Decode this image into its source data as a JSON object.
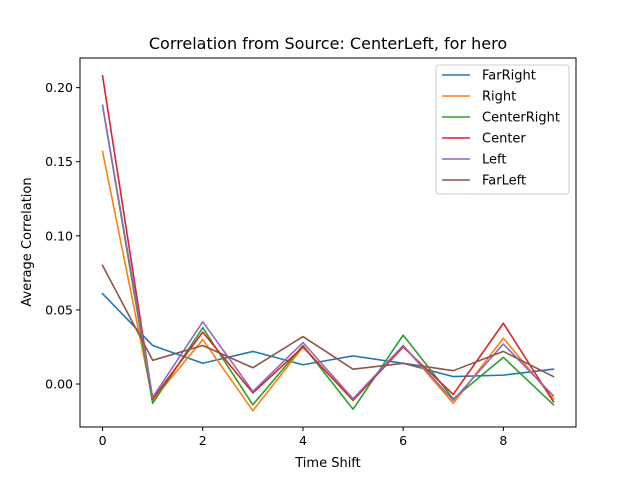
{
  "chart_data": {
    "type": "line",
    "title": "Correlation from Source: CenterLeft, for hero",
    "xlabel": "Time Shift",
    "ylabel": "Average Correlation",
    "x": [
      0,
      1,
      2,
      3,
      4,
      5,
      6,
      7,
      8,
      9
    ],
    "xlim": [
      -0.45,
      9.45
    ],
    "ylim": [
      -0.029,
      0.22
    ],
    "xticks": [
      0,
      2,
      4,
      6,
      8
    ],
    "yticks": [
      0.0,
      0.05,
      0.1,
      0.15,
      0.2
    ],
    "ytick_labels": [
      "0.00",
      "0.05",
      "0.10",
      "0.15",
      "0.20"
    ],
    "grid": false,
    "legend_position": "top-right",
    "series": [
      {
        "name": "FarRight",
        "color": "#1f77b4",
        "values": [
          0.061,
          0.026,
          0.014,
          0.022,
          0.013,
          0.019,
          0.014,
          0.005,
          0.006,
          0.01
        ]
      },
      {
        "name": "Right",
        "color": "#ff7f0e",
        "values": [
          0.157,
          -0.011,
          0.03,
          -0.018,
          0.025,
          -0.011,
          0.026,
          -0.013,
          0.031,
          -0.01
        ]
      },
      {
        "name": "CenterRight",
        "color": "#2ca02c",
        "values": [
          0.188,
          -0.013,
          0.038,
          -0.014,
          0.026,
          -0.017,
          0.033,
          -0.01,
          0.018,
          -0.014
        ]
      },
      {
        "name": "Center",
        "color": "#d62728",
        "values": [
          0.208,
          -0.01,
          0.035,
          -0.006,
          0.025,
          -0.011,
          0.025,
          -0.007,
          0.041,
          -0.012
        ]
      },
      {
        "name": "Left",
        "color": "#9467bd",
        "values": [
          0.188,
          -0.009,
          0.042,
          -0.005,
          0.028,
          -0.01,
          0.026,
          -0.011,
          0.027,
          -0.008
        ]
      },
      {
        "name": "FarLeft",
        "color": "#8c564b",
        "values": [
          0.08,
          0.016,
          0.026,
          0.011,
          0.032,
          0.01,
          0.014,
          0.009,
          0.022,
          0.005
        ]
      }
    ]
  }
}
